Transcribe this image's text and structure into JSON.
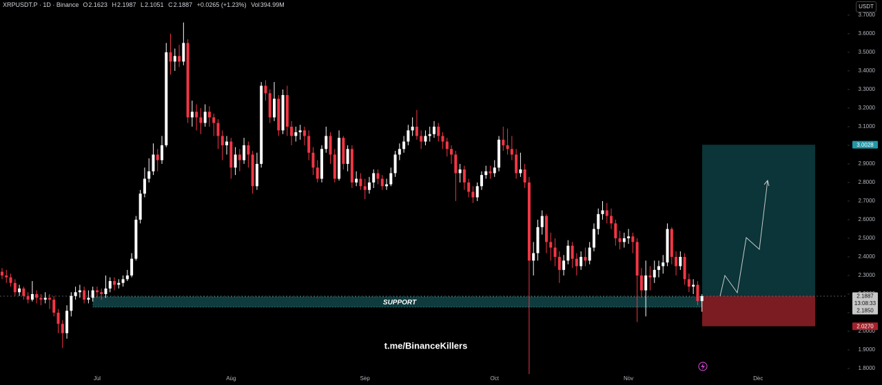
{
  "chart_data": {
    "type": "candlestick",
    "header": {
      "symbol": "XRPUSDT.P · 1D · Binance",
      "o": "O",
      "h": "H",
      "l": "L",
      "c": "C",
      "change": "+0.0265 (+1.23%)",
      "vol_label": "Vol",
      "volume": "394.99M"
    },
    "currency": "USDT",
    "up_color": "#ffffff",
    "down_color": "#f23645",
    "open": [
      2.32,
      2.3,
      2.29,
      2.26,
      2.21,
      2.23,
      2.19,
      2.17,
      2.2,
      2.18,
      2.17,
      2.18,
      2.17,
      2.1,
      2.04,
      1.99,
      2.11,
      2.19,
      2.21,
      2.22,
      2.17,
      2.18,
      2.22,
      2.21,
      2.2,
      2.23,
      2.27,
      2.25,
      2.26,
      2.28,
      2.3,
      2.39,
      2.6,
      2.74,
      2.82,
      2.86,
      2.95,
      2.92,
      3.0,
      3.5,
      3.45,
      3.48,
      3.45,
      3.55,
      3.15,
      3.18,
      3.15,
      3.12,
      3.18,
      3.15,
      3.12,
      3.05,
      3.0,
      3.02,
      2.88,
      2.95,
      2.92,
      3.0,
      2.95,
      2.78,
      2.9,
      3.32,
      3.28,
      3.15,
      3.25,
      3.08,
      3.27,
      3.1,
      3.05,
      3.07,
      3.08,
      3.05,
      2.96,
      2.88,
      2.82,
      2.98,
      3.05,
      2.95,
      2.82,
      3.04,
      2.9,
      2.98,
      2.8,
      2.82,
      2.78,
      2.76,
      2.8,
      2.85,
      2.82,
      2.78,
      2.79,
      2.85,
      2.95,
      2.98,
      3.02,
      3.08,
      3.1,
      3.05,
      3.02,
      3.05,
      3.06,
      3.1,
      3.05,
      3.02,
      2.98,
      2.95,
      2.85,
      2.87,
      2.8,
      2.75,
      2.72,
      2.78,
      2.84,
      2.86,
      2.85,
      2.88,
      3.03,
      3.0,
      2.98,
      2.95,
      2.85,
      2.87,
      2.8,
      2.38,
      2.42,
      2.56,
      2.62,
      2.48,
      2.45,
      2.4,
      2.33,
      2.38,
      2.46,
      2.39,
      2.35,
      2.4,
      2.38,
      2.45,
      2.55,
      2.63,
      2.65,
      2.62,
      2.58,
      2.5,
      2.48,
      2.5,
      2.51,
      2.48,
      2.3,
      2.22,
      2.3,
      2.29,
      2.33,
      2.35,
      2.37,
      2.55,
      2.4,
      2.35,
      2.4,
      2.28,
      2.24,
      2.25,
      2.1623
    ],
    "high": [
      2.34,
      2.33,
      2.31,
      2.28,
      2.25,
      2.24,
      2.21,
      2.27,
      2.22,
      2.2,
      2.21,
      2.2,
      2.19,
      2.12,
      2.06,
      2.14,
      2.21,
      2.24,
      2.25,
      2.24,
      2.22,
      2.24,
      2.24,
      2.23,
      2.3,
      2.29,
      2.29,
      2.28,
      2.3,
      2.33,
      2.42,
      2.62,
      2.76,
      2.88,
      2.93,
      3.01,
      2.98,
      3.05,
      3.55,
      3.6,
      3.52,
      3.54,
      3.66,
      3.57,
      3.24,
      3.22,
      3.2,
      3.22,
      3.21,
      3.17,
      3.14,
      3.08,
      3.05,
      3.04,
      2.99,
      2.98,
      3.04,
      3.02,
      2.97,
      2.96,
      3.34,
      3.35,
      3.3,
      3.34,
      3.27,
      3.3,
      3.32,
      3.13,
      3.1,
      3.11,
      3.1,
      3.08,
      2.99,
      2.92,
      3.0,
      3.1,
      3.07,
      2.98,
      3.08,
      3.05,
      3.0,
      3.0,
      2.86,
      2.85,
      2.82,
      2.83,
      2.87,
      2.87,
      2.84,
      2.82,
      2.88,
      2.97,
      3.01,
      3.05,
      3.11,
      3.15,
      3.19,
      3.08,
      3.08,
      3.1,
      3.13,
      3.12,
      3.07,
      3.04,
      3.0,
      2.97,
      2.9,
      2.89,
      2.82,
      2.78,
      2.8,
      2.86,
      2.89,
      2.89,
      2.92,
      3.05,
      3.1,
      3.09,
      3.05,
      2.98,
      2.96,
      2.9,
      2.83,
      2.48,
      2.6,
      2.65,
      2.63,
      2.53,
      2.5,
      2.43,
      2.41,
      2.49,
      2.48,
      2.42,
      2.43,
      2.45,
      2.48,
      2.58,
      2.66,
      2.7,
      2.69,
      2.66,
      2.6,
      2.54,
      2.53,
      2.55,
      2.53,
      2.5,
      2.34,
      2.38,
      2.35,
      2.38,
      2.38,
      2.41,
      2.58,
      2.56,
      2.43,
      2.43,
      2.42,
      2.31,
      2.28,
      2.27,
      2.1987
    ],
    "low": [
      2.28,
      2.26,
      2.24,
      2.19,
      2.19,
      2.17,
      2.15,
      2.16,
      2.15,
      2.14,
      2.15,
      2.12,
      2.08,
      1.99,
      1.91,
      1.96,
      2.08,
      2.17,
      2.18,
      2.15,
      2.15,
      2.16,
      2.18,
      2.17,
      2.18,
      2.21,
      2.22,
      2.23,
      2.24,
      2.27,
      2.29,
      2.38,
      2.58,
      2.72,
      2.8,
      2.84,
      2.86,
      2.9,
      2.99,
      3.38,
      3.4,
      3.42,
      3.43,
      3.12,
      3.1,
      3.08,
      3.06,
      3.1,
      3.1,
      3.05,
      2.98,
      2.92,
      2.95,
      2.82,
      2.84,
      2.86,
      2.9,
      2.88,
      2.74,
      2.76,
      2.88,
      3.24,
      3.12,
      3.13,
      3.05,
      3.06,
      3.05,
      3.0,
      3.02,
      3.03,
      3.0,
      2.92,
      2.84,
      2.8,
      2.8,
      2.96,
      2.9,
      2.8,
      2.81,
      2.87,
      2.86,
      2.77,
      2.78,
      2.76,
      2.71,
      2.74,
      2.77,
      2.79,
      2.76,
      2.76,
      2.78,
      2.83,
      2.92,
      2.96,
      3.0,
      3.05,
      3.03,
      2.98,
      3.0,
      3.02,
      3.04,
      3.02,
      2.98,
      2.94,
      2.9,
      2.7,
      2.8,
      2.76,
      2.72,
      2.69,
      2.7,
      2.76,
      2.82,
      2.82,
      2.83,
      2.86,
      2.97,
      2.95,
      2.92,
      2.82,
      2.83,
      2.77,
      1.77,
      2.3,
      2.38,
      2.52,
      2.42,
      2.38,
      2.35,
      2.26,
      2.3,
      2.36,
      2.34,
      2.3,
      2.33,
      2.35,
      2.36,
      2.43,
      2.52,
      2.6,
      2.58,
      2.55,
      2.46,
      2.44,
      2.45,
      2.47,
      2.42,
      2.05,
      2.18,
      2.08,
      2.22,
      2.26,
      2.29,
      2.31,
      2.35,
      2.36,
      2.3,
      2.33,
      2.25,
      2.21,
      2.2,
      2.14,
      2.1051
    ],
    "close": [
      2.3,
      2.29,
      2.26,
      2.21,
      2.23,
      2.19,
      2.17,
      2.2,
      2.18,
      2.17,
      2.18,
      2.17,
      2.1,
      2.04,
      1.99,
      2.11,
      2.19,
      2.21,
      2.22,
      2.17,
      2.18,
      2.22,
      2.21,
      2.2,
      2.23,
      2.27,
      2.25,
      2.26,
      2.28,
      2.3,
      2.39,
      2.6,
      2.74,
      2.82,
      2.86,
      2.95,
      2.92,
      3.0,
      3.5,
      3.45,
      3.48,
      3.45,
      3.55,
      3.15,
      3.18,
      3.15,
      3.12,
      3.18,
      3.15,
      3.12,
      3.05,
      3.0,
      3.02,
      2.88,
      2.95,
      2.92,
      3.0,
      2.95,
      2.78,
      2.9,
      3.32,
      3.28,
      3.15,
      3.25,
      3.08,
      3.27,
      3.1,
      3.05,
      3.07,
      3.08,
      3.05,
      2.96,
      2.88,
      2.82,
      2.98,
      3.05,
      2.95,
      2.82,
      3.04,
      2.9,
      2.98,
      2.8,
      2.82,
      2.78,
      2.76,
      2.8,
      2.85,
      2.82,
      2.78,
      2.79,
      2.85,
      2.95,
      2.98,
      3.02,
      3.08,
      3.1,
      3.05,
      3.02,
      3.05,
      3.06,
      3.1,
      3.05,
      3.02,
      2.98,
      2.95,
      2.85,
      2.87,
      2.8,
      2.75,
      2.72,
      2.78,
      2.84,
      2.86,
      2.85,
      2.88,
      3.03,
      3.0,
      2.98,
      2.95,
      2.85,
      2.87,
      2.8,
      2.38,
      2.42,
      2.56,
      2.62,
      2.48,
      2.45,
      2.4,
      2.33,
      2.38,
      2.46,
      2.39,
      2.35,
      2.4,
      2.38,
      2.45,
      2.55,
      2.63,
      2.65,
      2.62,
      2.58,
      2.5,
      2.48,
      2.5,
      2.51,
      2.48,
      2.3,
      2.22,
      2.3,
      2.29,
      2.33,
      2.35,
      2.37,
      2.55,
      2.4,
      2.35,
      2.4,
      2.28,
      2.24,
      2.25,
      2.1623,
      2.1887
    ],
    "countdown": "13:08:33",
    "xlim": [
      -0.48,
      195.7
    ],
    "xticks": [
      {
        "value": 22,
        "label": "Jul"
      },
      {
        "value": 53,
        "label": "Aug"
      },
      {
        "value": 84,
        "label": "Sep"
      },
      {
        "value": 114,
        "label": "Oct"
      },
      {
        "value": 145,
        "label": "Nov"
      },
      {
        "value": 175,
        "label": "Dec"
      }
    ],
    "ylim": [
      1.763,
      3.781
    ],
    "yticks": [
      {
        "value": 1.8,
        "label": "1.8000"
      },
      {
        "value": 1.9,
        "label": "1.9000"
      },
      {
        "value": 2.0,
        "label": "2.0000"
      },
      {
        "value": 2.1,
        "label": "2.1000"
      },
      {
        "value": 2.2,
        "label": "2.2000"
      },
      {
        "value": 2.3,
        "label": "2.3000"
      },
      {
        "value": 2.4,
        "label": "2.4000"
      },
      {
        "value": 2.5,
        "label": "2.5000"
      },
      {
        "value": 2.6,
        "label": "2.6000"
      },
      {
        "value": 2.7,
        "label": "2.7000"
      },
      {
        "value": 2.8,
        "label": "2.8000"
      },
      {
        "value": 2.9,
        "label": "2.9000"
      },
      {
        "value": 3.0,
        "label": "3.0000"
      },
      {
        "value": 3.1,
        "label": "3.1000"
      },
      {
        "value": 3.2,
        "label": "3.2000"
      },
      {
        "value": 3.3,
        "label": "3.3000"
      },
      {
        "value": 3.4,
        "label": "3.4000"
      },
      {
        "value": 3.5,
        "label": "3.5000"
      },
      {
        "value": 3.6,
        "label": "3.6000"
      },
      {
        "value": 3.7,
        "label": "3.7000"
      }
    ],
    "support": {
      "label": "SUPPORT",
      "top": {
        "value": 2.185,
        "label": "2.1850"
      },
      "bottom": 2.13,
      "color": "#0f3b3e"
    },
    "position": {
      "target": 3.0028,
      "stop": {
        "value": 2.027,
        "label": "2.0270"
      },
      "profit_color": "#0b3538",
      "loss_color": "#7a1c22"
    },
    "watermark": "t.me/BinanceKillers"
  }
}
